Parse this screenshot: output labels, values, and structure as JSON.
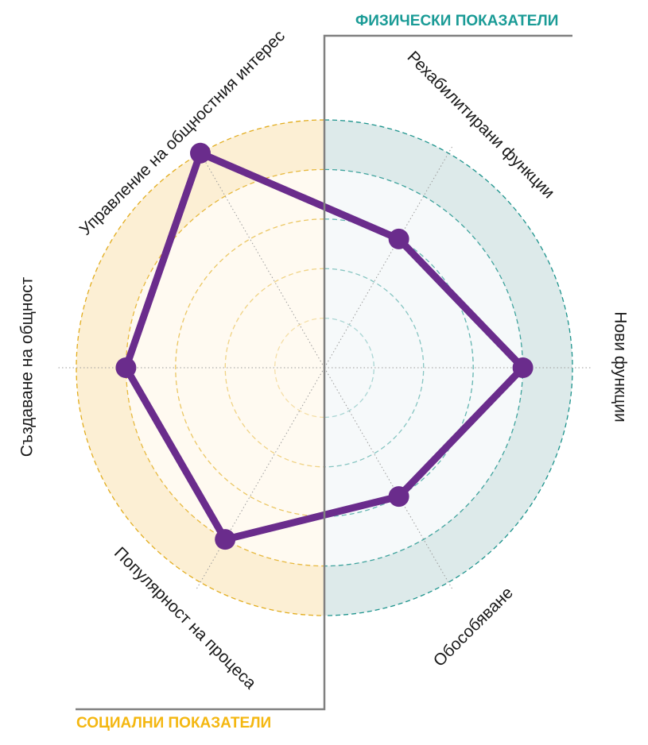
{
  "chart_data": {
    "type": "radar",
    "title": "",
    "scale": {
      "min": 0,
      "max": 5,
      "rings": [
        1,
        2,
        3,
        4,
        5
      ]
    },
    "axes": [
      "Рехабилитирани функции",
      "Нови функции",
      "Обособяване",
      "Популярност на процеса",
      "Създаване на общност",
      "Управление на общностния интерес"
    ],
    "series": [
      {
        "values": [
          3,
          4,
          3,
          4,
          4,
          5
        ]
      }
    ],
    "groups": [
      {
        "label": "ФИЗИЧЕСКИ ПОКАЗАТЕЛИ",
        "axes": [
          "Рехабилитирани функции",
          "Нови функции",
          "Обособяване"
        ]
      },
      {
        "label": "СОЦИАЛНИ ПОКАЗАТЕЛИ",
        "axes": [
          "Популярност на процеса",
          "Създаване на общност",
          "Управление на общностния интерес"
        ]
      }
    ],
    "colors": {
      "series": "#6a2c8c",
      "physical_band": "#ddeaea",
      "physical_inner": "#f6f9fa",
      "physical_ring": "#1e948d",
      "physical_title": "#1a9b96",
      "social_band": "#fcefd4",
      "social_inner": "#fffaf1",
      "social_ring": "#e2ad1f",
      "social_title": "#f4b711",
      "divider": "#808080",
      "spoke": "#9a9a9a"
    }
  }
}
